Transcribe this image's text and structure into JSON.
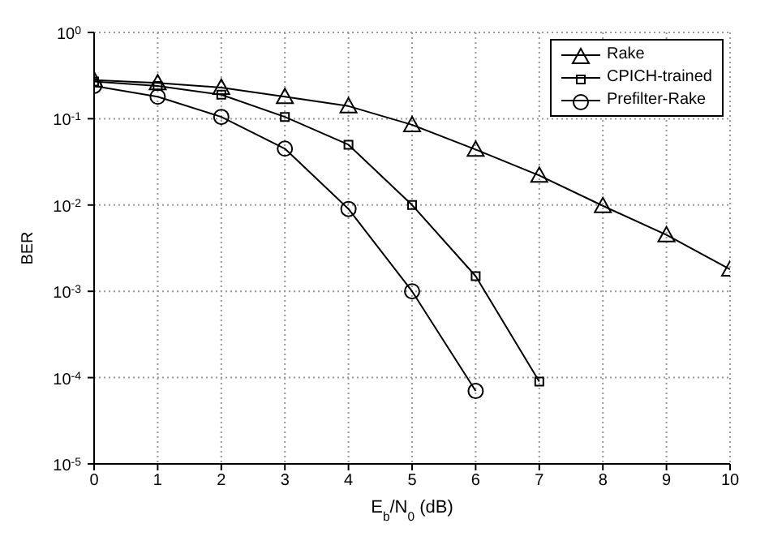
{
  "chart_data": {
    "type": "line",
    "xlabel": "E$_{b}$/N$_{0}$ (dB)",
    "ylabel": "BER",
    "log": "y",
    "grid": true,
    "legend": "top right",
    "line_style": "solid",
    "xlim": [
      0,
      10
    ],
    "xticks": [
      0,
      1,
      2,
      3,
      4,
      5,
      6,
      7,
      8,
      9,
      10
    ],
    "ylim": [
      1e-05,
      1
    ],
    "yticks": [
      {
        "value": 1e-05,
        "label": "10$^{-5}$"
      },
      {
        "value": 0.0001,
        "label": "10$^{-4}$"
      },
      {
        "value": 0.001,
        "label": "10$^{-3}$"
      },
      {
        "value": 0.01,
        "label": "10$^{-2}$"
      },
      {
        "value": 0.1,
        "label": "10$^{-1}$"
      },
      {
        "value": 1,
        "label": "10$^{0}$"
      }
    ],
    "series": [
      {
        "name": "Rake",
        "color": "#000000",
        "marker": "triangle",
        "x": [
          0,
          1,
          2,
          3,
          4,
          5,
          6,
          7,
          8,
          9,
          10
        ],
        "values": [
          0.28,
          0.26,
          0.23,
          0.18,
          0.14,
          0.085,
          0.044,
          0.022,
          0.0098,
          0.0045,
          0.0018
        ]
      },
      {
        "name": "CPICH-trained",
        "color": "#000000",
        "marker": "square",
        "x": [
          0,
          1,
          2,
          3,
          4,
          5,
          6,
          7
        ],
        "values": [
          0.27,
          0.24,
          0.19,
          0.105,
          0.05,
          0.01,
          0.0015,
          9e-05
        ]
      },
      {
        "name": "Prefilter-Rake",
        "color": "#000000",
        "marker": "circle",
        "x": [
          0,
          1,
          2,
          3,
          4,
          5,
          6
        ],
        "values": [
          0.24,
          0.18,
          0.105,
          0.045,
          0.009,
          0.001,
          7e-05
        ]
      }
    ]
  }
}
